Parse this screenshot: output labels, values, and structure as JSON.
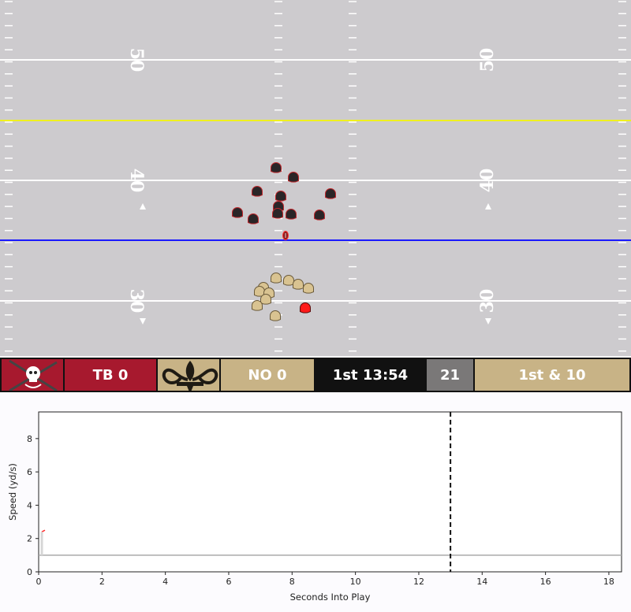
{
  "field": {
    "background_color": "#cdcbce",
    "line_color": "#ffffff",
    "scrimmage_color": "#1a1aff",
    "first_down_color": "#f0f01e",
    "yard_numbers_left": [
      "50",
      "40",
      "30"
    ],
    "yard_numbers_right": [
      "50",
      "40",
      "30"
    ],
    "offense_color": "#d9c391",
    "defense_color": "#2a2527",
    "highlight_color": "#ff1a1a",
    "ball_color": "#8b1e1e"
  },
  "scoreboard": {
    "home_team_logo": "buccaneers-flag-logo",
    "home_score_text": "TB 0",
    "home_color": "#a7192e",
    "away_team_logo": "fleur-de-lis-logo",
    "away_score_text": "NO 0",
    "away_color": "#c8b386",
    "clock_text": "1st 13:54",
    "clock_color": "#111111",
    "play_clock_text": "21",
    "play_clock_color": "#7a7878",
    "down_distance_text": "1st & 10",
    "down_color": "#c8b386"
  },
  "chart_data": {
    "type": "line",
    "xlabel": "Seconds Into Play",
    "ylabel": "Speed (yd/s)",
    "xlim": [
      0,
      18.4
    ],
    "ylim": [
      0,
      9.6
    ],
    "xticks": [
      0,
      2,
      4,
      6,
      8,
      10,
      12,
      14,
      16,
      18
    ],
    "yticks": [
      0,
      2,
      4,
      6,
      8
    ],
    "grid": false,
    "series": [
      {
        "color": "#aaaaaa",
        "x": [
          0,
          0.1,
          18.4
        ],
        "y": [
          1.0,
          1.0,
          1.0
        ]
      },
      {
        "color": "#ff2a2a",
        "x": [
          0.1,
          0.2
        ],
        "y": [
          2.4,
          2.5
        ]
      }
    ],
    "vertical_line": {
      "x": 13.0,
      "style": "dashed",
      "color": "#111111"
    }
  }
}
